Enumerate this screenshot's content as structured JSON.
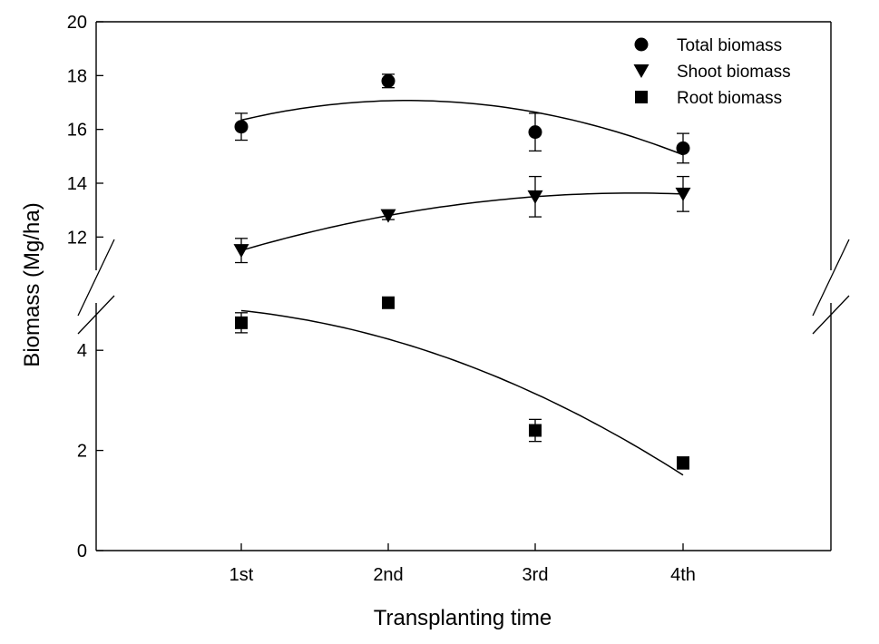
{
  "chart_data": {
    "type": "scatter",
    "xlabel": "Transplanting time",
    "ylabel": "Biomass (Mg/ha)",
    "categories": [
      "1st",
      "2nd",
      "3rd",
      "4th"
    ],
    "broken_y_axis": true,
    "y_lower_range": [
      0,
      5
    ],
    "y_upper_range": [
      11,
      20
    ],
    "y_lower_ticks": [
      0,
      2,
      4
    ],
    "y_upper_ticks": [
      12,
      14,
      16,
      18,
      20
    ],
    "legend_position": "top-right",
    "series": [
      {
        "name": "Total biomass",
        "marker": "circle",
        "values": [
          16.1,
          17.8,
          15.9,
          15.3
        ],
        "errors": [
          0.5,
          0.25,
          0.7,
          0.55
        ],
        "fit": "quadratic"
      },
      {
        "name": "Shoot biomass",
        "marker": "triangle-down",
        "values": [
          11.5,
          12.8,
          13.5,
          13.6
        ],
        "errors": [
          0.45,
          0.15,
          0.75,
          0.65
        ],
        "fit": "quadratic"
      },
      {
        "name": "Root biomass",
        "marker": "square",
        "values": [
          4.55,
          4.95,
          2.4,
          1.75
        ],
        "errors": [
          0.2,
          0.1,
          0.22,
          0.12
        ],
        "fit": "quadratic"
      }
    ],
    "color": "#000000"
  }
}
